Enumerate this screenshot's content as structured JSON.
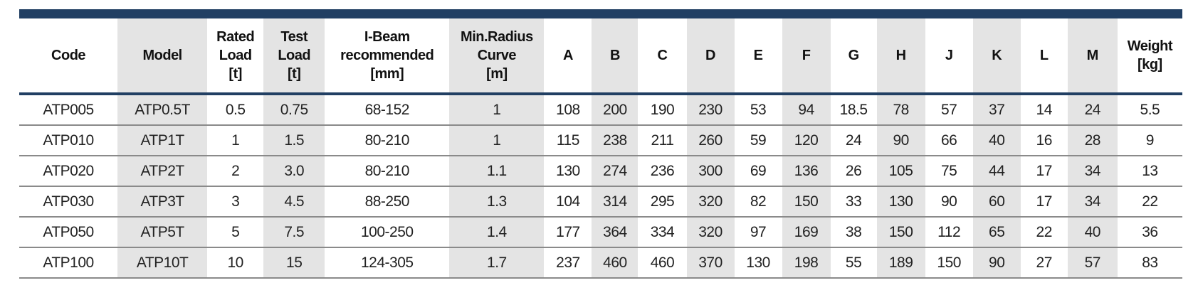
{
  "table": {
    "headers": [
      [
        "Code"
      ],
      [
        "Model"
      ],
      [
        "Rated",
        "Load",
        "[t]"
      ],
      [
        "Test",
        "Load",
        "[t]"
      ],
      [
        "I-Beam",
        "recommended",
        "[mm]"
      ],
      [
        "Min.Radius",
        "Curve",
        "[m]"
      ],
      [
        "A"
      ],
      [
        "B"
      ],
      [
        "C"
      ],
      [
        "D"
      ],
      [
        "E"
      ],
      [
        "F"
      ],
      [
        "G"
      ],
      [
        "H"
      ],
      [
        "J"
      ],
      [
        "K"
      ],
      [
        "L"
      ],
      [
        "M"
      ],
      [
        "Weight",
        "[kg]"
      ]
    ],
    "rows": [
      [
        "ATP005",
        "ATP0.5T",
        "0.5",
        "0.75",
        "68-152",
        "1",
        "108",
        "200",
        "190",
        "230",
        "53",
        "94",
        "18.5",
        "78",
        "57",
        "37",
        "14",
        "24",
        "5.5"
      ],
      [
        "ATP010",
        "ATP1T",
        "1",
        "1.5",
        "80-210",
        "1",
        "115",
        "238",
        "211",
        "260",
        "59",
        "120",
        "24",
        "90",
        "66",
        "40",
        "16",
        "28",
        "9"
      ],
      [
        "ATP020",
        "ATP2T",
        "2",
        "3.0",
        "80-210",
        "1.1",
        "130",
        "274",
        "236",
        "300",
        "69",
        "136",
        "26",
        "105",
        "75",
        "44",
        "17",
        "34",
        "13"
      ],
      [
        "ATP030",
        "ATP3T",
        "3",
        "4.5",
        "88-250",
        "1.3",
        "104",
        "314",
        "295",
        "320",
        "82",
        "150",
        "33",
        "130",
        "90",
        "60",
        "17",
        "34",
        "22"
      ],
      [
        "ATP050",
        "ATP5T",
        "5",
        "7.5",
        "100-250",
        "1.4",
        "177",
        "364",
        "334",
        "320",
        "97",
        "169",
        "38",
        "150",
        "112",
        "65",
        "22",
        "40",
        "36"
      ],
      [
        "ATP100",
        "ATP10T",
        "10",
        "15",
        "124-305",
        "1.7",
        "237",
        "460",
        "460",
        "370",
        "130",
        "198",
        "55",
        "189",
        "150",
        "90",
        "27",
        "57",
        "83"
      ]
    ]
  }
}
